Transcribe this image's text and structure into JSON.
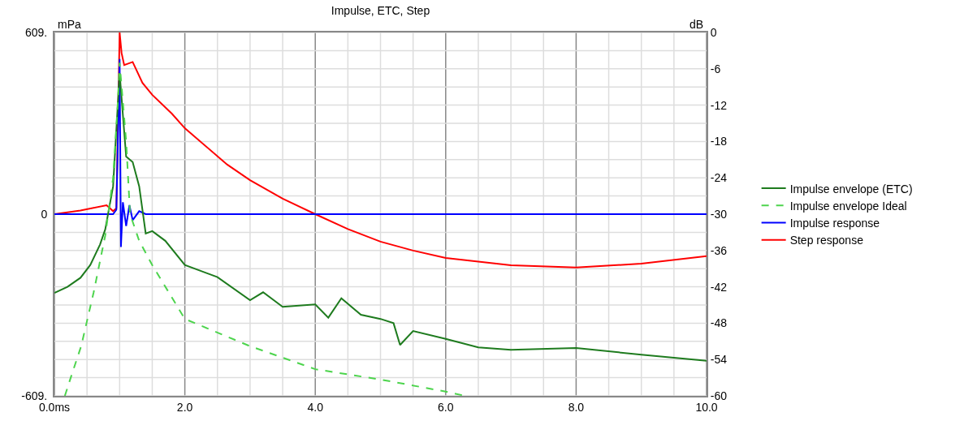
{
  "chart_data": {
    "type": "line",
    "title": "Impulse, ETC, Step",
    "ylabel": "mPa",
    "y2label": "dB",
    "xlim": [
      0,
      10
    ],
    "xticks": [
      {
        "value": 0,
        "label": "0.0ms"
      },
      {
        "value": 0.5,
        "label": null
      },
      {
        "value": 1,
        "label": null
      },
      {
        "value": 1.5,
        "label": null
      },
      {
        "value": 2,
        "label": "2.0"
      },
      {
        "value": 2.5,
        "label": null
      },
      {
        "value": 3,
        "label": null
      },
      {
        "value": 3.5,
        "label": null
      },
      {
        "value": 4,
        "label": "4.0"
      },
      {
        "value": 4.5,
        "label": null
      },
      {
        "value": 5,
        "label": null
      },
      {
        "value": 5.5,
        "label": null
      },
      {
        "value": 6,
        "label": "6.0"
      },
      {
        "value": 6.5,
        "label": null
      },
      {
        "value": 7,
        "label": null
      },
      {
        "value": 7.5,
        "label": null
      },
      {
        "value": 8,
        "label": "8.0"
      },
      {
        "value": 8.5,
        "label": null
      },
      {
        "value": 9,
        "label": null
      },
      {
        "value": 9.5,
        "label": null
      },
      {
        "value": 10,
        "label": "10.0"
      }
    ],
    "ylim": [
      -609,
      609
    ],
    "yticks": [
      {
        "value": 609,
        "label": "609."
      },
      0,
      {
        "value": -609,
        "label": "-609."
      }
    ],
    "y2lim": [
      -60,
      0
    ],
    "y2ticks": [
      0,
      {
        "value": -3,
        "label": null
      },
      -6,
      {
        "value": -9,
        "label": null
      },
      -12,
      {
        "value": -15,
        "label": null
      },
      -18,
      {
        "value": -21,
        "label": null
      },
      -24,
      {
        "value": -27,
        "label": null
      },
      -30,
      {
        "value": -33,
        "label": null
      },
      -36,
      {
        "value": -39,
        "label": null
      },
      -42,
      {
        "value": -45,
        "label": null
      },
      -48,
      {
        "value": -51,
        "label": null
      },
      -54,
      {
        "value": -57,
        "label": null
      },
      -60
    ],
    "grid": true,
    "legend": "right",
    "marker": "none",
    "series": [
      {
        "name": "Impulse envelope (ETC)",
        "color": "#1e7b1e",
        "axis": "y2",
        "line_style": "solid",
        "x": [
          0,
          0.2,
          0.4,
          0.55,
          0.7,
          0.78,
          0.9,
          0.95,
          1.0,
          1.1,
          1.2,
          1.3,
          1.4,
          1.5,
          1.7,
          2.0,
          2.5,
          3.0,
          3.2,
          3.5,
          4.0,
          4.2,
          4.4,
          4.7,
          5.0,
          5.2,
          5.3,
          5.5,
          6.0,
          6.5,
          7.0,
          8.0,
          9.0,
          10.0
        ],
        "values": [
          -43,
          -42,
          -40.5,
          -38.4,
          -35,
          -32.5,
          -25.4,
          -16,
          -6.7,
          -20.5,
          -21.4,
          -25.4,
          -33.2,
          -32.8,
          -34.4,
          -38.4,
          -40.4,
          -44.2,
          -42.9,
          -45.3,
          -44.9,
          -47.1,
          -43.9,
          -46.6,
          -47.3,
          -48,
          -51.6,
          -49.3,
          -50.6,
          -52,
          -52.4,
          -52.1,
          -53.2,
          -54.2
        ]
      },
      {
        "name": "Impulse envelope Ideal",
        "color": "#4dd44d",
        "axis": "y2",
        "line_style": "dashed",
        "x": [
          0.16,
          0.25,
          0.41,
          0.6,
          0.78,
          0.9,
          0.97,
          1.0,
          1.1,
          1.16,
          1.3,
          1.5,
          2.0,
          3.0,
          4.0,
          5.0,
          6.0,
          6.3
        ],
        "values": [
          -60,
          -57,
          -51.8,
          -43,
          -33.5,
          -24,
          -12,
          -5,
          -18,
          -30,
          -34.4,
          -38.4,
          -47.3,
          -51.8,
          -55.6,
          -57.3,
          -59.3,
          -60
        ]
      },
      {
        "name": "Impulse response",
        "color": "#0000ff",
        "axis": "y",
        "line_style": "solid",
        "x": [
          0,
          0.9,
          0.95,
          1.0,
          1.02,
          1.05,
          1.1,
          1.15,
          1.2,
          1.3,
          1.4,
          10
        ],
        "values": [
          0,
          0,
          15,
          520,
          -110,
          40,
          -40,
          30,
          -20,
          10,
          0,
          0
        ]
      },
      {
        "name": "Step response",
        "color": "#ff0000",
        "axis": "y",
        "line_style": "solid",
        "x": [
          0,
          0.4,
          0.8,
          0.9,
          0.95,
          1.0,
          1.03,
          1.07,
          1.2,
          1.35,
          1.5,
          1.8,
          2.0,
          2.65,
          3.0,
          3.5,
          4.0,
          4.5,
          5.0,
          5.5,
          6.0,
          7.0,
          8.0,
          9.0,
          10.0
        ],
        "values": [
          0,
          12,
          30,
          10,
          20,
          609,
          540,
          500,
          510,
          440,
          400,
          337,
          288,
          166,
          114,
          52,
          0,
          -50,
          -92,
          -122,
          -147,
          -171,
          -179,
          -166,
          -141
        ]
      }
    ]
  }
}
